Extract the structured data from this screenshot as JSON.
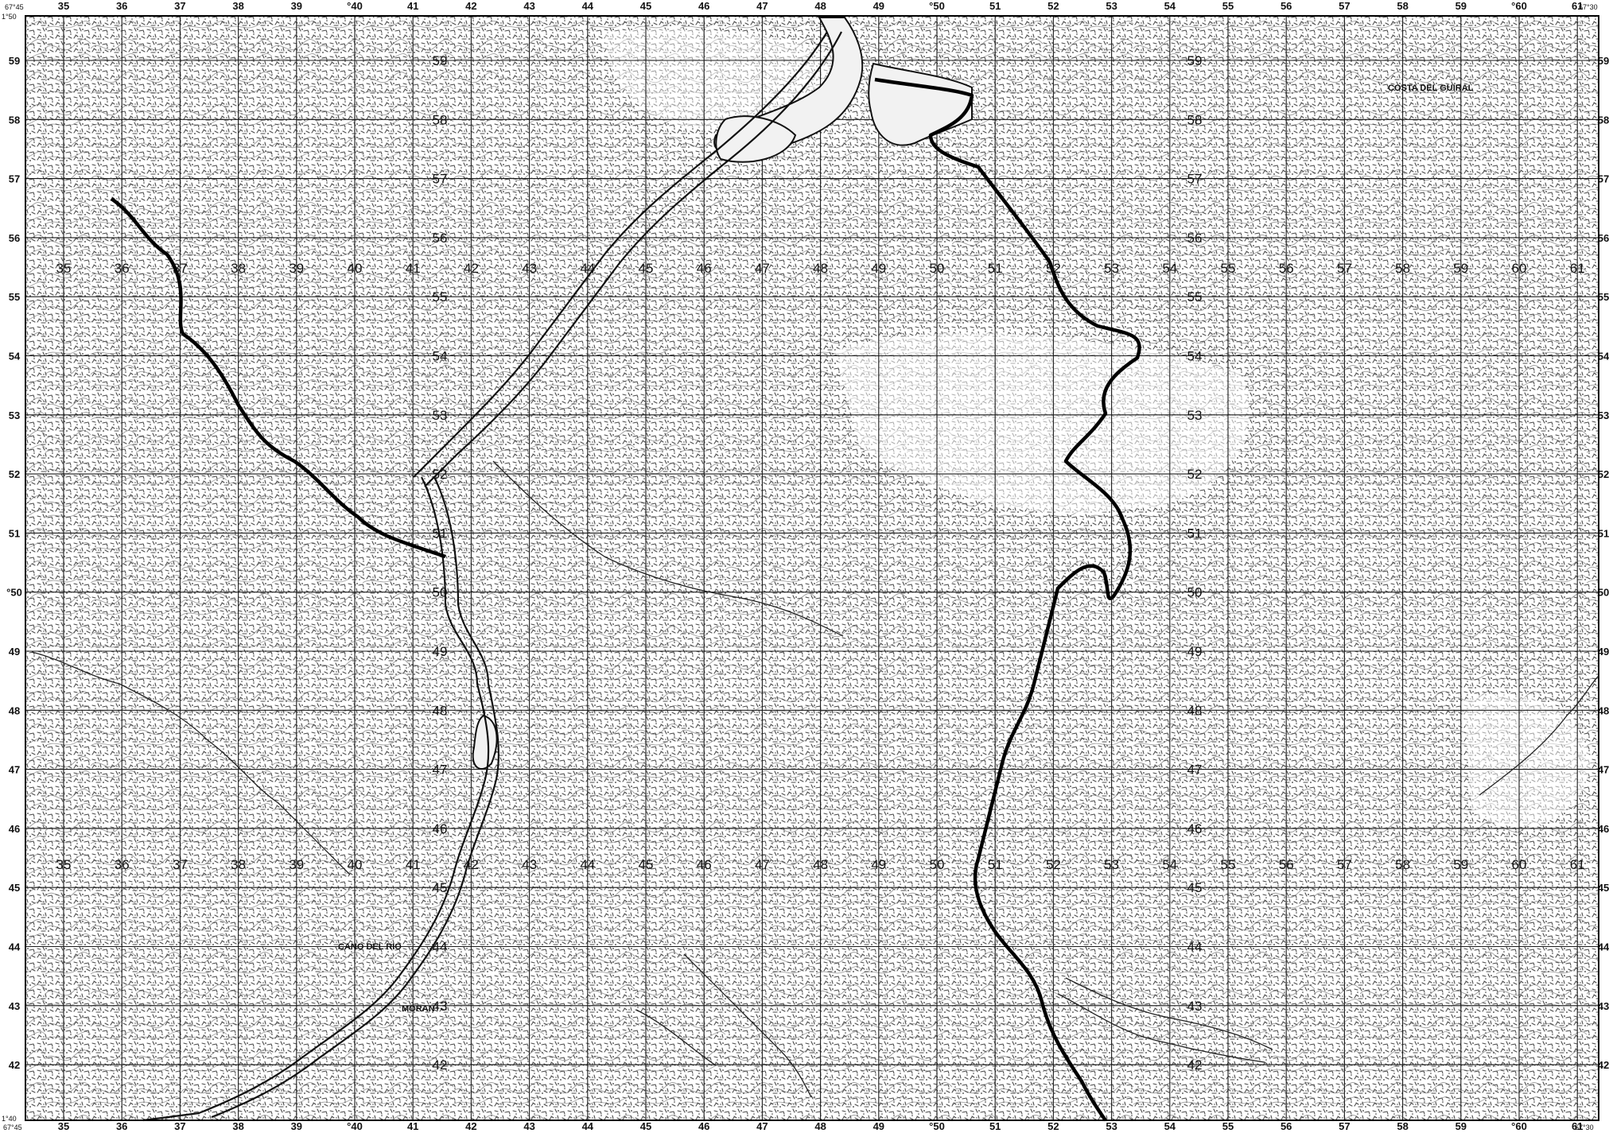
{
  "map": {
    "colors": {
      "paper": "#ffffff",
      "ink": "#111111",
      "stipple": "#4a4a4a"
    },
    "corners": {
      "top_left_lon": "67°45",
      "top_right_lon": "67°30",
      "top_left_lat": "1°50",
      "bottom_left_lat": "1°40",
      "bottom_left_lon": "67°45",
      "bottom_right_lon": "67°30"
    },
    "top_labels": [
      "35",
      "36",
      "37",
      "38",
      "39",
      "°40",
      "41",
      "42",
      "43",
      "44",
      "45",
      "46",
      "47",
      "48",
      "49",
      "°50",
      "51",
      "52",
      "53",
      "54",
      "55",
      "56",
      "57",
      "58",
      "59",
      "°60",
      "61"
    ],
    "bottom_labels": [
      "35",
      "36",
      "37",
      "38",
      "39",
      "°40",
      "41",
      "42",
      "43",
      "44",
      "45",
      "46",
      "47",
      "48",
      "49",
      "°50",
      "51",
      "52",
      "53",
      "54",
      "55",
      "56",
      "57",
      "58",
      "59",
      "°60",
      "61"
    ],
    "left_labels": [
      "59",
      "58",
      "57",
      "56",
      "55",
      "54",
      "53",
      "52",
      "51",
      "°50",
      "49",
      "48",
      "47",
      "46",
      "45",
      "44",
      "43",
      "42"
    ],
    "right_labels": [
      "59",
      "58",
      "57",
      "56",
      "55",
      "54",
      "53",
      "52",
      "51",
      "50",
      "49",
      "48",
      "47",
      "46",
      "45",
      "44",
      "43",
      "42"
    ],
    "row_labels_upper": [
      "35",
      "36",
      "37",
      "38",
      "39",
      "40",
      "41",
      "42",
      "43",
      "44",
      "45",
      "46",
      "47",
      "48",
      "49",
      "50",
      "51",
      "52",
      "53",
      "54",
      "55",
      "56",
      "57",
      "58",
      "59",
      "60",
      "61"
    ],
    "row_labels_lower": [
      "35",
      "36",
      "37",
      "38",
      "39",
      "40",
      "41",
      "42",
      "43",
      "44",
      "45",
      "46",
      "47",
      "48",
      "49",
      "50",
      "51",
      "52",
      "53",
      "54",
      "55",
      "56",
      "57",
      "58",
      "59",
      "60",
      "61"
    ],
    "column_labels_center": [
      "59",
      "58",
      "57",
      "56",
      "55",
      "54",
      "53",
      "52",
      "51",
      "50",
      "49",
      "48",
      "47",
      "46",
      "45",
      "44",
      "43",
      "42"
    ],
    "column_labels_right": [
      "59",
      "58",
      "57",
      "56",
      "55",
      "54",
      "53",
      "52",
      "51",
      "50",
      "49",
      "48",
      "47",
      "46",
      "45",
      "44",
      "43",
      "42"
    ],
    "place_names": {
      "mouth": "CANO DEL RIO",
      "north_east": "COSTA DEL GUIRAL",
      "south": "MORAN"
    }
  }
}
